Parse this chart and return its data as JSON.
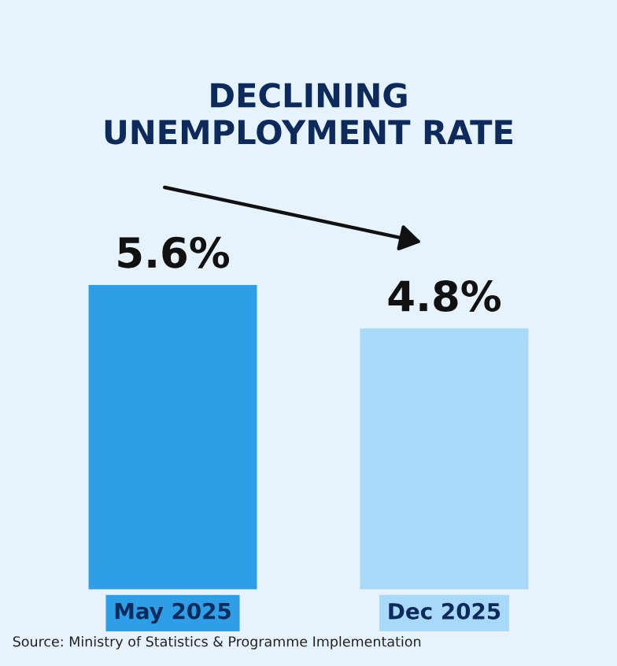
{
  "chart_data": {
    "type": "bar",
    "title": "DECLINING\nUNEMPLOYMENT RATE",
    "categories": [
      "May 2025",
      "Dec 2025"
    ],
    "values": [
      5.6,
      4.8
    ],
    "colors": [
      "#2e9ee6",
      "#a9d9f8"
    ],
    "value_labels": [
      "5.6%",
      "4.8%"
    ],
    "annotations": [
      "Source: Ministry of Statistics & Programme Implementation"
    ],
    "grid": false,
    "legend": false
  }
}
